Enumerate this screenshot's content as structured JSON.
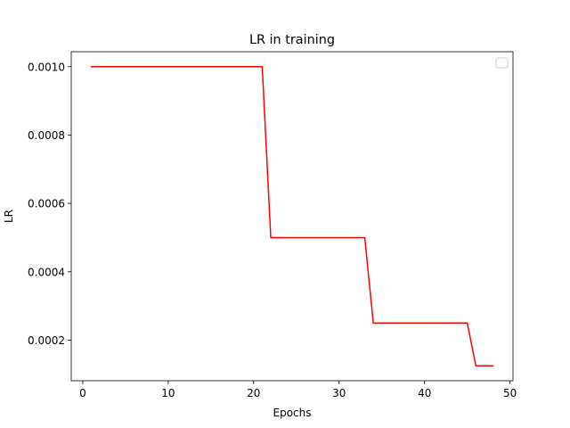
{
  "chart_data": {
    "type": "line",
    "title": "LR in training",
    "xlabel": "Epochs",
    "ylabel": "LR",
    "xlim": [
      -1.35,
      50.35
    ],
    "ylim": [
      8.125e-05,
      0.00104375
    ],
    "xticks": [
      0,
      10,
      20,
      30,
      40,
      50
    ],
    "xtick_labels": [
      "0",
      "10",
      "20",
      "30",
      "40",
      "50"
    ],
    "yticks": [
      0.0002,
      0.0004,
      0.0006,
      0.0008,
      0.001
    ],
    "ytick_labels": [
      "0.0002",
      "0.0004",
      "0.0006",
      "0.0008",
      "0.0010"
    ],
    "grid": false,
    "legend": {
      "placement": "top-right",
      "entries": []
    },
    "series": [
      {
        "color": "#ff0000",
        "x": [
          1,
          21,
          22,
          33,
          34,
          45,
          46,
          48
        ],
        "y": [
          0.001,
          0.001,
          0.0005,
          0.0005,
          0.00025,
          0.00025,
          0.000125,
          0.000125
        ]
      }
    ]
  }
}
